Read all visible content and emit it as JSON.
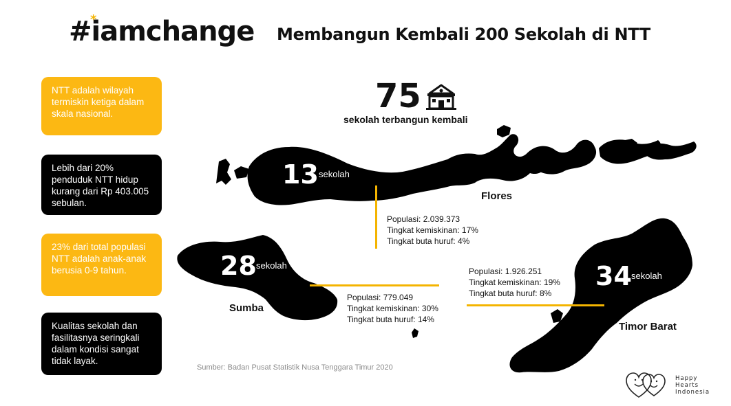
{
  "header": {
    "hashtag": "#iamchange",
    "title": "Membangun Kembali 200 Sekolah di NTT"
  },
  "facts": [
    {
      "text": "NTT adalah wilayah termiskin ketiga dalam skala nasional.",
      "style": "yellow"
    },
    {
      "text": "Lebih dari 20% penduduk NTT hidup kurang dari Rp 403.005 sebulan.",
      "style": "black"
    },
    {
      "text": "23% dari total populasi NTT adalah anak-anak berusia 0-9 tahun.",
      "style": "yellow"
    },
    {
      "text": "Kualitas sekolah dan fasilitasnya seringkali dalam kondisi sangat tidak layak.",
      "style": "black"
    }
  ],
  "total": {
    "number": "75",
    "label": "sekolah terbangun kembali",
    "icon": "school-building-icon"
  },
  "islands": {
    "flores": {
      "name": "Flores",
      "count": "13",
      "unit": "sekolah",
      "population": "Populasi: 2.039.373",
      "poverty": "Tingkat kemiskinan: 17%",
      "illiteracy": "Tingkat buta huruf: 4%"
    },
    "sumba": {
      "name": "Sumba",
      "count": "28",
      "unit": "sekolah",
      "population": "Populasi: 779.049",
      "poverty": "Tingkat kemiskinan: 30%",
      "illiteracy": "Tingkat buta huruf: 14%"
    },
    "timor": {
      "name": "Timor Barat",
      "count": "34",
      "unit": "sekolah",
      "population": "Populasi: 1.926.251",
      "poverty": "Tingkat kemiskinan: 19%",
      "illiteracy": "Tingkat buta huruf: 8%"
    }
  },
  "source": "Sumber: Badan Pusat Statistik Nusa Tenggara Timur 2020",
  "brand": {
    "line1": "Happy",
    "line2": "Hearts",
    "line3": "Indonesia"
  },
  "colors": {
    "accent": "#fcb813",
    "dark": "#000000",
    "background": "#ffffff"
  }
}
